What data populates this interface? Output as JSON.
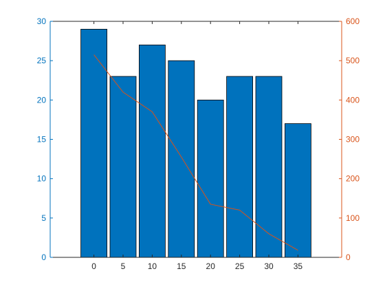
{
  "chart_data": {
    "type": "bar",
    "x": [
      0,
      5,
      10,
      15,
      20,
      25,
      30,
      35
    ],
    "xlim": [
      -7.5,
      42.5
    ],
    "x_ticks": [
      "0",
      "5",
      "10",
      "15",
      "20",
      "25",
      "30",
      "35"
    ],
    "series": [
      {
        "type": "bar",
        "axis": "left",
        "values": [
          29,
          23,
          27,
          25,
          20,
          23,
          23,
          17
        ],
        "color": "#0072BD"
      },
      {
        "type": "line",
        "axis": "right",
        "values": [
          515,
          420,
          370,
          255,
          135,
          120,
          60,
          18
        ],
        "color": "#D95319"
      }
    ],
    "y_left": {
      "lim": [
        0,
        30
      ],
      "ticks": [
        "0",
        "5",
        "10",
        "15",
        "20",
        "25",
        "30"
      ],
      "color": "#0072BD"
    },
    "y_right": {
      "lim": [
        0,
        600
      ],
      "ticks": [
        "0",
        "100",
        "200",
        "300",
        "400",
        "500",
        "600"
      ],
      "color": "#D95319"
    },
    "grid": false,
    "title": "",
    "xlabel": "",
    "ylabel": ""
  }
}
